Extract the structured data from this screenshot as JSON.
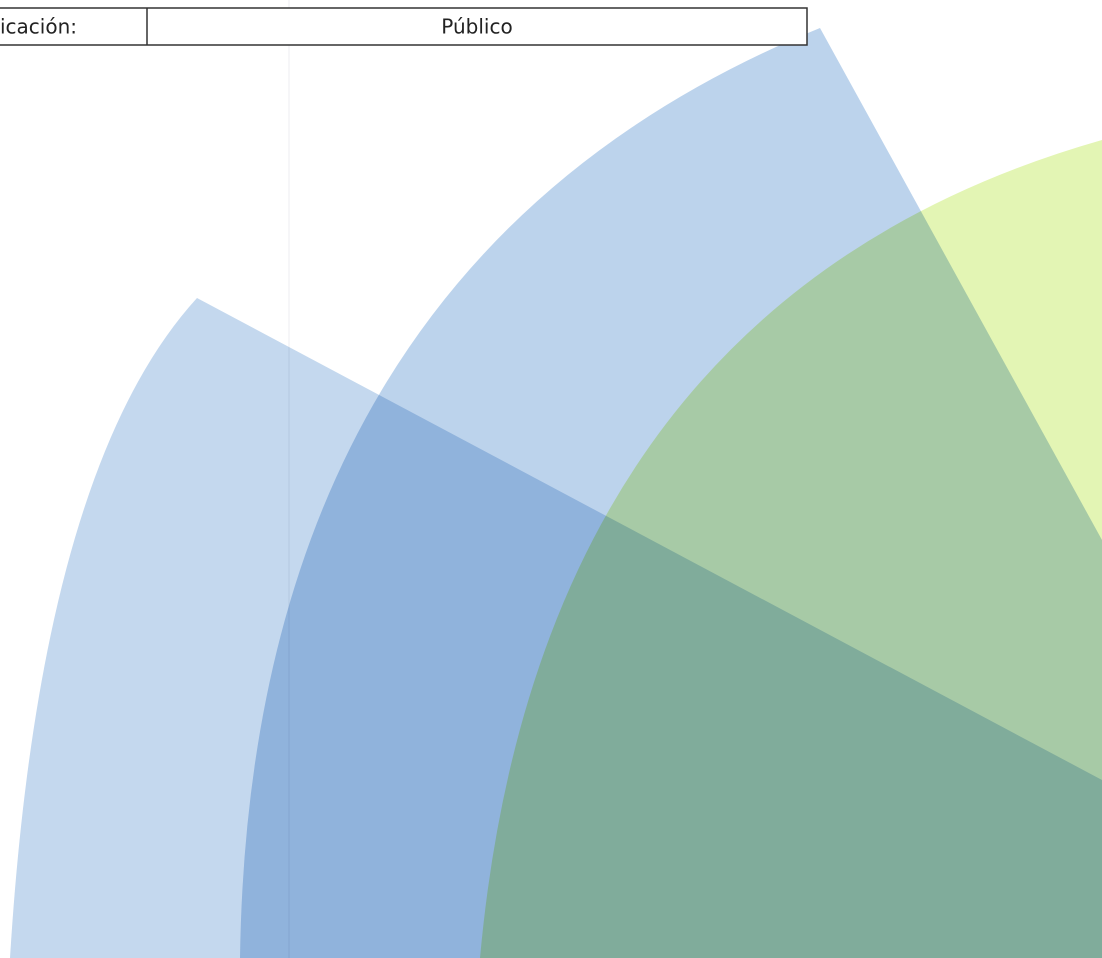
{
  "header": {
    "label": "icación:",
    "value": "Público"
  }
}
